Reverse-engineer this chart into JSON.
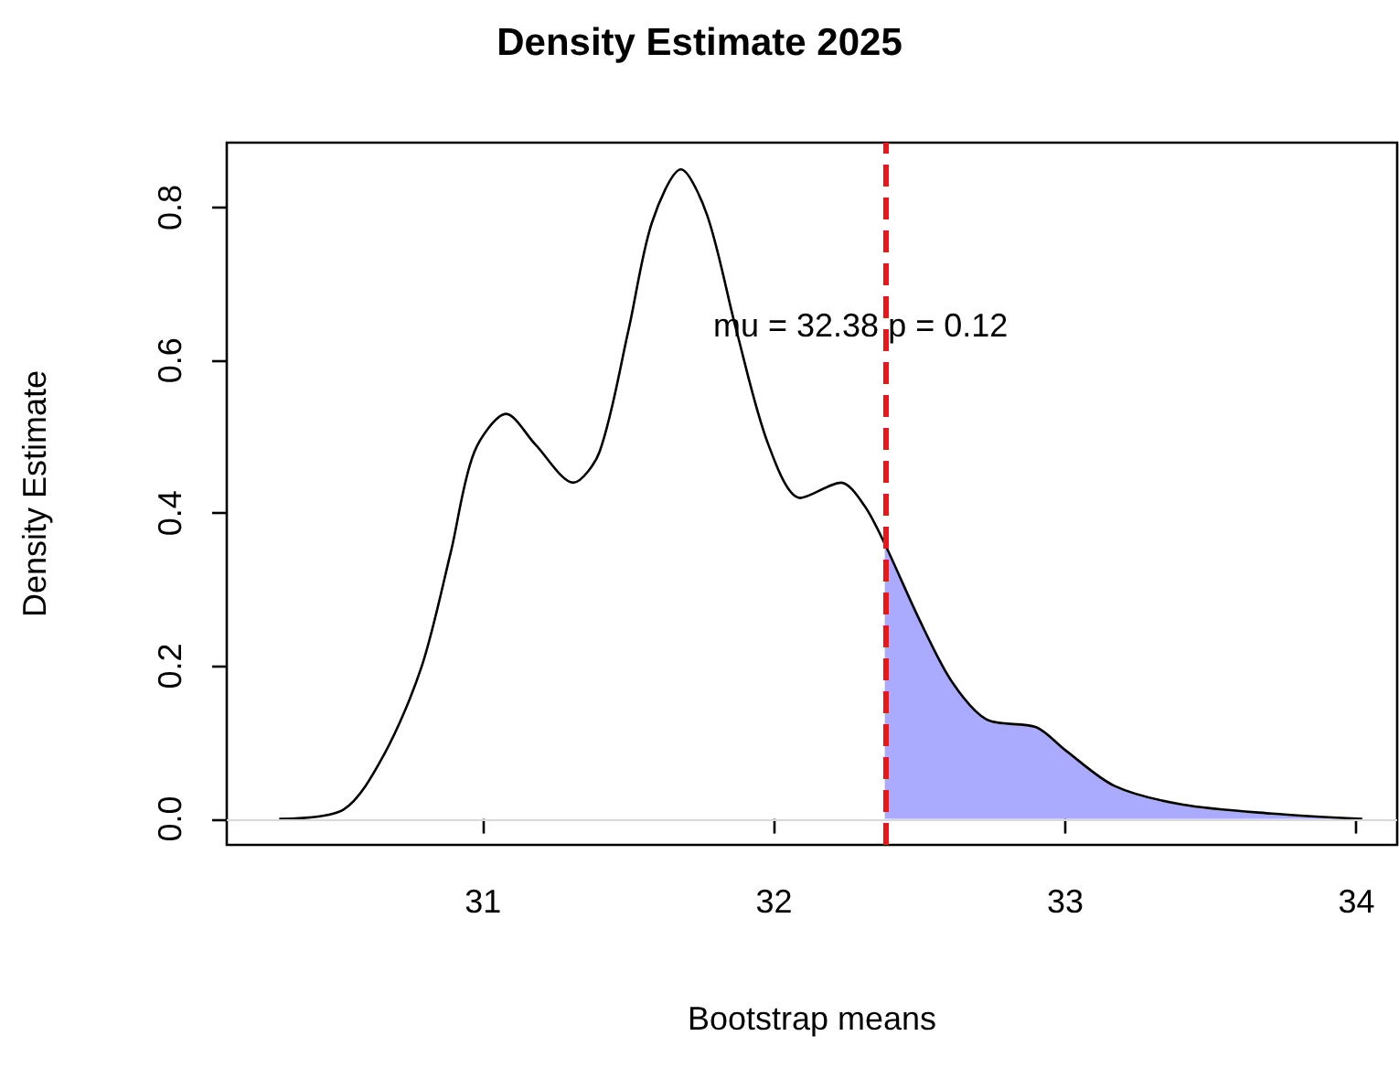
{
  "chart_data": {
    "type": "line",
    "title": "Density Estimate 2025",
    "xlabel": "Bootstrap means",
    "ylabel": "Density Estimate",
    "xlim": [
      30.12,
      34.14
    ],
    "ylim": [
      -0.034,
      0.885
    ],
    "xticks": [
      31,
      32,
      33,
      34
    ],
    "yticks": [
      {
        "value": 0,
        "label": "0.0"
      },
      0.2,
      0.4,
      0.6,
      0.8
    ],
    "grid": false,
    "series": [
      {
        "color": "#000000",
        "x": [
          30.3,
          30.52,
          30.66,
          30.79,
          30.89,
          30.97,
          31.08,
          31.18,
          31.31,
          31.4,
          31.5,
          31.58,
          31.68,
          31.77,
          31.87,
          31.98,
          32.09,
          32.23,
          32.31,
          32.38,
          32.5,
          32.61,
          32.73,
          32.9,
          33.0,
          33.17,
          33.4,
          33.71,
          34.02
        ],
        "values": [
          0,
          0.012,
          0.084,
          0.2,
          0.35,
          0.48,
          0.53,
          0.49,
          0.44,
          0.48,
          0.64,
          0.78,
          0.85,
          0.79,
          0.64,
          0.49,
          0.42,
          0.44,
          0.41,
          0.36,
          0.26,
          0.18,
          0.13,
          0.12,
          0.09,
          0.043,
          0.019,
          0.007,
          0
        ]
      },
      {
        "type": "area",
        "color": "#aaaaff",
        "x": [
          32.38,
          32.5,
          32.61,
          32.73,
          32.9,
          33.0,
          33.17,
          33.4,
          33.71,
          34.02
        ],
        "values": [
          0.36,
          0.26,
          0.18,
          0.13,
          0.12,
          0.09,
          0.043,
          0.019,
          0.007,
          0
        ]
      }
    ],
    "ref_lines": [
      {
        "axis": "y",
        "value": 0,
        "color": "#d9d9d9",
        "line_style": "solid"
      },
      {
        "axis": "x",
        "value": 32.38,
        "color": "#e31a1c",
        "line_style": "dashed"
      }
    ],
    "annotations": [
      "mu = 32.38 p = 0.12"
    ]
  }
}
